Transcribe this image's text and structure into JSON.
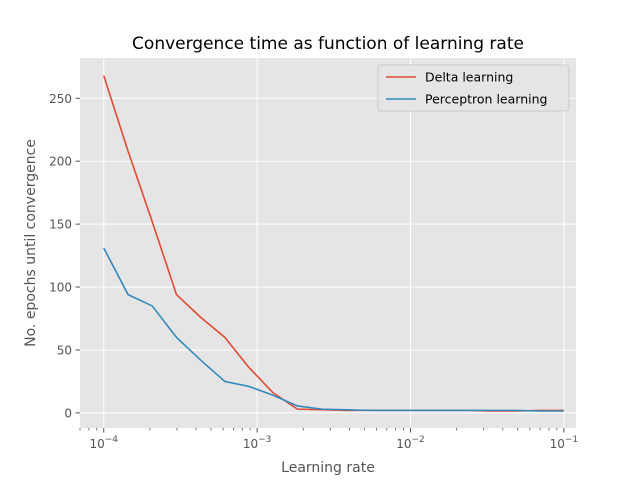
{
  "chart_data": {
    "type": "line",
    "title": "Convergence time as function of learning rate",
    "xlabel": "Learning rate",
    "ylabel": "No. epochs until convergence",
    "xscale": "log",
    "xlim": [
      7e-05,
      0.12
    ],
    "ylim": [
      -12,
      282
    ],
    "x_ticks": [
      {
        "value": 0.0001,
        "base": "10",
        "exp": "−4"
      },
      {
        "value": 0.001,
        "base": "10",
        "exp": "−3"
      },
      {
        "value": 0.01,
        "base": "10",
        "exp": "−2"
      },
      {
        "value": 0.1,
        "base": "10",
        "exp": "−1"
      }
    ],
    "y_ticks": [
      0,
      50,
      100,
      150,
      200,
      250
    ],
    "grid": true,
    "legend_position": "top-right",
    "x": [
      0.0001,
      0.000144,
      0.000207,
      0.000298,
      0.000428,
      0.000616,
      0.000886,
      0.00127,
      0.00183,
      0.00264,
      0.00379,
      0.00546,
      0.00785,
      0.0113,
      0.0162,
      0.0234,
      0.0336,
      0.0483,
      0.0695,
      0.1
    ],
    "series": [
      {
        "name": "Delta learning",
        "color": "#E24A33",
        "values": [
          268,
          208,
          152,
          94,
          76,
          60,
          36,
          16,
          3,
          2.5,
          2,
          2,
          2,
          2,
          2,
          2,
          1.5,
          1.5,
          2,
          2
        ]
      },
      {
        "name": "Perceptron learning",
        "color": "#348ABD",
        "values": [
          131,
          94,
          85,
          60,
          42,
          25,
          21,
          14,
          5.5,
          3,
          2.5,
          2,
          2,
          2,
          2,
          2,
          2,
          2,
          1.5,
          1.5
        ]
      }
    ]
  }
}
